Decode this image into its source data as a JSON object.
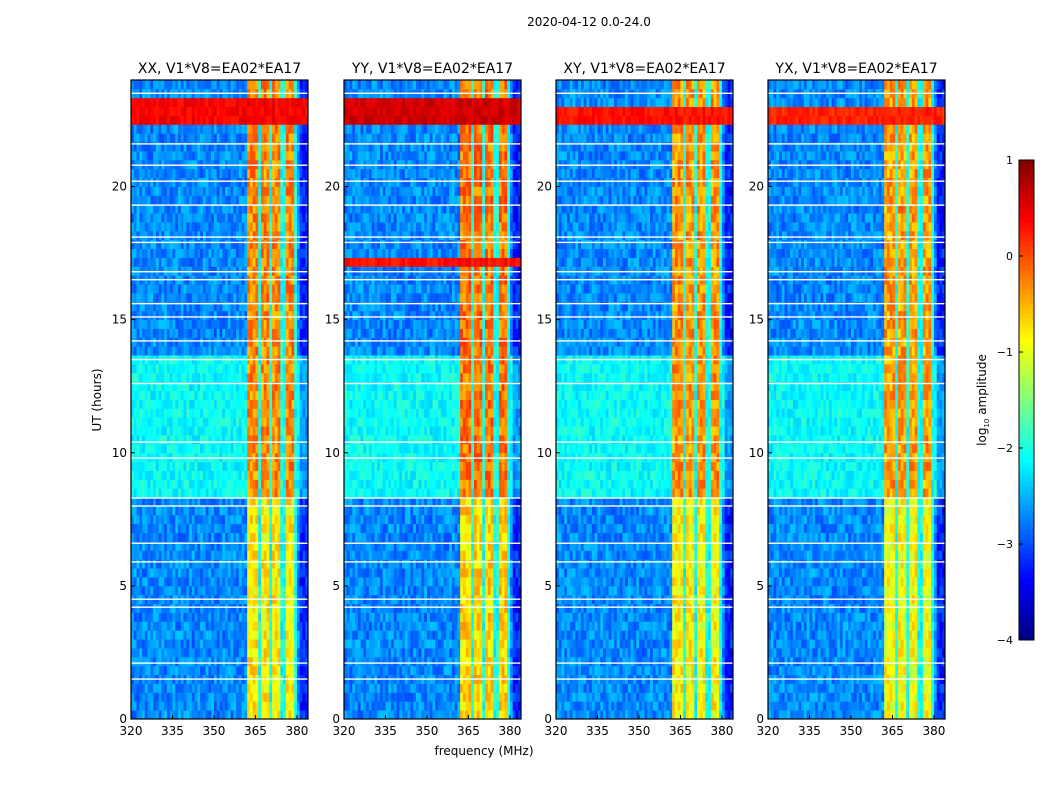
{
  "figure_title": "2020-04-12 0.0-24.0",
  "chart_data": {
    "type": "heatmap",
    "title": "2020-04-12 0.0-24.0",
    "xlabel": "frequency (MHz)",
    "ylabel": "UT (hours)",
    "xlim": [
      320,
      384
    ],
    "ylim": [
      0,
      24
    ],
    "xticks": [
      "320",
      "335",
      "350",
      "365",
      "380"
    ],
    "xtick_values": [
      320,
      335,
      350,
      365,
      380
    ],
    "yticks": [
      "0",
      "5",
      "10",
      "15",
      "20"
    ],
    "ytick_values": [
      0,
      5,
      10,
      15,
      20
    ],
    "panels": [
      {
        "title": "XX, V1*V8=EA02*EA17",
        "hot_rows": [
          [
            22.3,
            23.2,
            0.4
          ]
        ],
        "band_boost": 0.0
      },
      {
        "title": "YY, V1*V8=EA02*EA17",
        "hot_rows": [
          [
            22.2,
            23.3,
            0.6
          ],
          [
            17.0,
            17.2,
            0.3
          ]
        ],
        "band_boost": 0.1
      },
      {
        "title": "XY, V1*V8=EA02*EA17",
        "hot_rows": [
          [
            22.3,
            23.0,
            0.3
          ]
        ],
        "band_boost": -0.05
      },
      {
        "title": "YX, V1*V8=EA02*EA17",
        "hot_rows": [
          [
            22.4,
            22.9,
            0.2
          ]
        ],
        "band_boost": -0.1
      }
    ],
    "background_level": -2.7,
    "elevated_period": {
      "hours": [
        8.3,
        13.5
      ],
      "level": -2.1
    },
    "rfi_band": {
      "mhz": [
        362,
        380
      ],
      "level_early": -0.8,
      "level_late": -0.3,
      "late_after_hour": 8.3,
      "gaps_mhz": [
        366.5,
        370.5,
        375.0,
        379.5
      ]
    },
    "flagged_rows_hours": [
      1.5,
      2.1,
      4.2,
      4.5,
      5.9,
      6.6,
      8.0,
      8.3,
      9.8,
      10.4,
      12.6,
      13.5,
      14.2,
      15.1,
      15.6,
      16.5,
      16.8,
      17.9,
      18.1,
      19.3,
      20.2,
      20.8,
      21.6,
      23.5
    ],
    "colorbar": {
      "label_prefix": "log",
      "label_subscript": "10",
      "label_suffix": " amplitude",
      "range": [
        -4,
        1
      ],
      "colormap": "jet",
      "ticks": [
        "1",
        "0",
        "−1",
        "−2",
        "−3",
        "−4"
      ],
      "tick_values": [
        1,
        0,
        -1,
        -2,
        -3,
        -4
      ]
    }
  }
}
